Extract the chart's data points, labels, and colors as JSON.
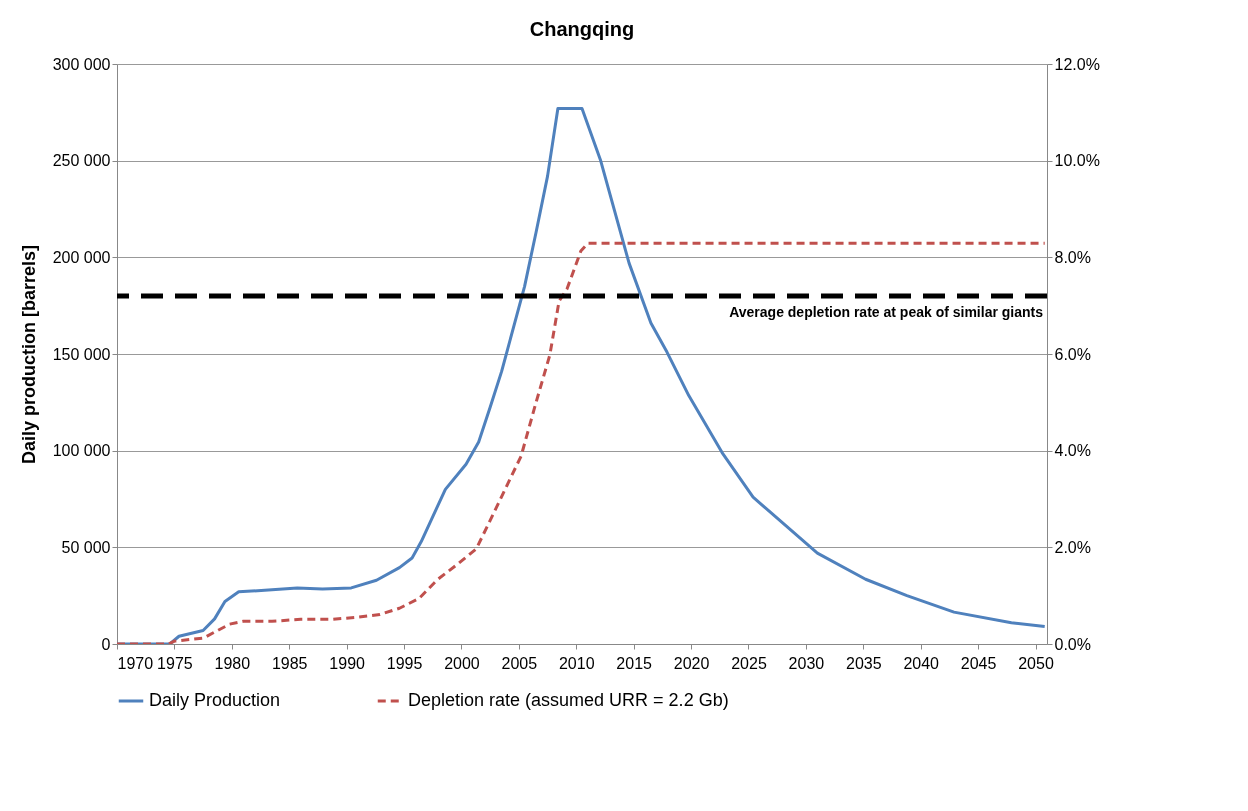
{
  "chart_data": {
    "type": "line",
    "title": "Changqing",
    "ylabel": "Daily production  [barrels]",
    "xlim": [
      1970,
      2051
    ],
    "xticks": [
      1970,
      1975,
      1980,
      1985,
      1990,
      1995,
      2000,
      2005,
      2010,
      2015,
      2020,
      2025,
      2030,
      2035,
      2040,
      2045,
      2050
    ],
    "ylim": [
      0,
      300000
    ],
    "yticks": [
      {
        "value": 0,
        "label": "0"
      },
      {
        "value": 50000,
        "label": "50 000"
      },
      {
        "value": 100000,
        "label": "100 000"
      },
      {
        "value": 150000,
        "label": "150 000"
      },
      {
        "value": 200000,
        "label": "200 000"
      },
      {
        "value": 250000,
        "label": "250 000"
      },
      {
        "value": 300000,
        "label": "300 000"
      }
    ],
    "y2lim": [
      0,
      12
    ],
    "y2ticks": [
      {
        "value": 0,
        "label": "0.0%"
      },
      {
        "value": 2,
        "label": "2.0%"
      },
      {
        "value": 4,
        "label": "4.0%"
      },
      {
        "value": 6,
        "label": "6.0%"
      },
      {
        "value": 8,
        "label": "8.0%"
      },
      {
        "value": 10,
        "label": "10.0%"
      },
      {
        "value": 12,
        "label": "12.0%"
      }
    ],
    "grid": "y",
    "legend": "bottom",
    "marker": "none",
    "series": [
      {
        "name": "Daily Production",
        "color": "#4f81bd",
        "line_style": "solid",
        "x": [
          1970,
          1974.6,
          1975.4,
          1977.5,
          1978.5,
          1979.4,
          1980.6,
          1983.5,
          1985.7,
          1987.9,
          1990.4,
          1992.6,
          1994.6,
          1995.7,
          1996.5,
          1998.6,
          2000.4,
          2001.5,
          2002.5,
          2003.5,
          2005.5,
          2006.5,
          2007.5,
          2008.4,
          2010.5,
          2012.1,
          2014.6,
          2016.5,
          2017.9,
          2019.8,
          2022.7,
          2025.4,
          2027.9,
          2031,
          2035.2,
          2038.8,
          2042.9,
          2047.9,
          2050.8
        ],
        "values": [
          0,
          0,
          4000,
          7000,
          13000,
          22000,
          27000,
          28000,
          29000,
          28500,
          29000,
          33000,
          39500,
          44500,
          53000,
          80000,
          93000,
          104500,
          122500,
          141000,
          185000,
          213000,
          242000,
          277000,
          277000,
          250500,
          197000,
          166000,
          151000,
          128500,
          99000,
          76000,
          63000,
          47000,
          33500,
          25000,
          16500,
          11000,
          9000
        ]
      },
      {
        "name": "Depletion rate (assumed URR = 2.2 Gb)",
        "color": "#c0504d",
        "line_style": "dashed",
        "axis": "y2",
        "x": [
          1970,
          1974.5,
          1975,
          1977.5,
          1979.8,
          1981,
          1983.5,
          1986,
          1988.8,
          1990.7,
          1992.9,
          1994.6,
          1996.3,
          1997.9,
          1999.6,
          2001.3,
          2003.3,
          2005.2,
          2006.5,
          2007.7,
          2008.5,
          2009.2,
          2010.4,
          2011,
          2050.8
        ],
        "values": [
          0,
          0,
          0.06,
          0.12,
          0.41,
          0.47,
          0.47,
          0.51,
          0.51,
          0.55,
          0.61,
          0.74,
          0.94,
          1.33,
          1.64,
          1.97,
          2.95,
          3.89,
          5.0,
          5.98,
          7.09,
          7.35,
          8.13,
          8.29,
          8.29
        ]
      }
    ],
    "ref_lines": [
      {
        "axis": "y2",
        "value": 7.2,
        "label": "Average depletion rate at peak of similar giants",
        "color": "#000000",
        "line_style": "dashed"
      }
    ]
  }
}
